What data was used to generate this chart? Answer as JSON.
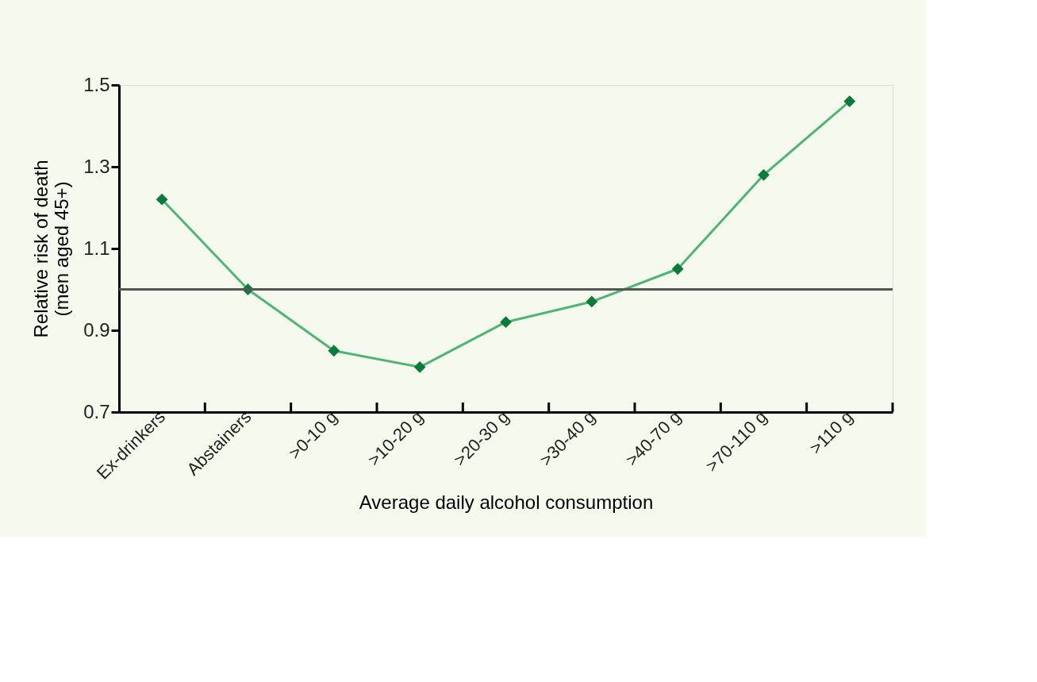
{
  "chart_data": {
    "type": "line",
    "xlabel": "Average daily alcohol consumption",
    "ylabel": "Relative risk of death (men aged 45+)",
    "categories": [
      "Ex-drinkers",
      "Abstainers",
      ">0-10 g",
      ">10-20 g",
      ">20-30 g",
      ">30-40 g",
      ">40-70 g",
      ">70-110 g",
      ">110 g"
    ],
    "series": [
      {
        "color": "#4fb574",
        "values": [
          1.22,
          1.0,
          0.85,
          0.81,
          0.92,
          0.97,
          1.05,
          1.28,
          1.46
        ]
      }
    ],
    "ylim": [
      0.7,
      1.5
    ],
    "yticks": [
      0.7,
      0.9,
      1.1,
      1.3,
      1.5
    ],
    "ref_lines": [
      {
        "axis": "y",
        "value": 1.0,
        "color": "#555555"
      }
    ],
    "marker": "diamond",
    "grid": false
  }
}
